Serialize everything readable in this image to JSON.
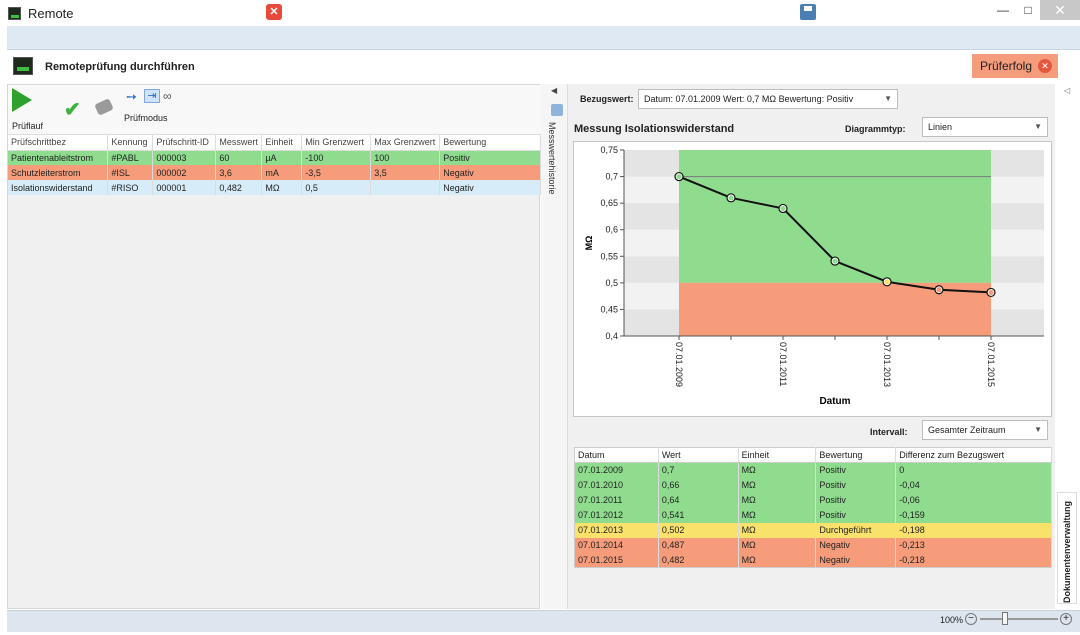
{
  "window": {
    "title": "Remote",
    "controls": {
      "minimize": "—",
      "maximize": "□",
      "close": "✕"
    }
  },
  "toolbar": {
    "cancel_icon": "cancel-icon",
    "save_icon": "save-icon"
  },
  "header": {
    "title": "Remoteprüfung durchführen",
    "result_badge": "Prüferfolg"
  },
  "ribbon": {
    "run_label": "Prüflauf",
    "mode_label": "Prüfmodus"
  },
  "steps": {
    "columns": [
      "Prüfschrittbez",
      "Kennung",
      "Prüfschritt-ID",
      "Messwert",
      "Einheit",
      "Min Grenzwert",
      "Max Grenzwert",
      "Bewertung"
    ],
    "rows": [
      {
        "status": "g",
        "cells": [
          "Patientenableitstrom",
          "#PABL",
          "000003",
          "60",
          "µA",
          "-100",
          "100",
          "Positiv"
        ]
      },
      {
        "status": "r",
        "cells": [
          "Schutzleiterstrom",
          "#ISL",
          "000002",
          "3,6",
          "mA",
          "-3,5",
          "3,5",
          "Negativ"
        ]
      },
      {
        "status": "b",
        "cells": [
          "Isolationswiderstand",
          "#RISO",
          "000001",
          "0,482",
          "MΩ",
          "0,5",
          "",
          "Negativ"
        ]
      }
    ]
  },
  "history_tab": "Messwertehistorie",
  "reference": {
    "label": "Bezugswert:",
    "value": "Datum: 07.01.2009 Wert: 0,7 MΩ Bewertung: Positiv"
  },
  "chart_panel": {
    "title": "Messung Isolationswiderstand",
    "type_label": "Diagrammtyp:",
    "type_value": "Linien",
    "interval_label": "Intervall:",
    "interval_value": "Gesamter Zeitraum"
  },
  "chart_data": {
    "type": "line",
    "x": [
      "07.01.2009",
      "07.01.2010",
      "07.01.2011",
      "07.01.2012",
      "07.01.2013",
      "07.01.2014",
      "07.01.2015"
    ],
    "x_ticks": [
      "07.01.2009",
      "07.01.2011",
      "07.01.2013",
      "07.01.2015"
    ],
    "series": [
      {
        "values": [
          0.7,
          0.66,
          0.64,
          0.541,
          0.502,
          0.487,
          0.482
        ]
      }
    ],
    "reference_value": 0.7,
    "limit_value": 0.5,
    "y_ticks": [
      "0,4",
      "0,45",
      "0,5",
      "0,55",
      "0,6",
      "0,65",
      "0,7",
      "0,75"
    ],
    "xlabel": "Datum",
    "ylabel": "MΩ",
    "ylim": [
      0.4,
      0.75
    ],
    "colors": {
      "pass": "#8fdc8f",
      "fail": "#f69c7a",
      "warn": "#f9e26b",
      "line": "#111111"
    }
  },
  "history": {
    "columns": [
      "Datum",
      "Wert",
      "Einheit",
      "Bewertung",
      "Differenz zum Bezugswert"
    ],
    "rows": [
      {
        "status": "g",
        "cells": [
          "07.01.2009",
          "0,7",
          "MΩ",
          "Positiv",
          "0"
        ]
      },
      {
        "status": "g",
        "cells": [
          "07.01.2010",
          "0,66",
          "MΩ",
          "Positiv",
          "-0,04"
        ]
      },
      {
        "status": "g",
        "cells": [
          "07.01.2011",
          "0,64",
          "MΩ",
          "Positiv",
          "-0,06"
        ]
      },
      {
        "status": "g",
        "cells": [
          "07.01.2012",
          "0,541",
          "MΩ",
          "Positiv",
          "-0,159"
        ]
      },
      {
        "status": "y",
        "cells": [
          "07.01.2013",
          "0,502",
          "MΩ",
          "Durchgeführt",
          "-0,198"
        ]
      },
      {
        "status": "r",
        "cells": [
          "07.01.2014",
          "0,487",
          "MΩ",
          "Negativ",
          "-0,213"
        ]
      },
      {
        "status": "r",
        "cells": [
          "07.01.2015",
          "0,482",
          "MΩ",
          "Negativ",
          "-0,218"
        ]
      }
    ]
  },
  "doc_tab": "Dokumentenverwaltung",
  "status": {
    "zoom": "100%",
    "zoom_minus": "−",
    "zoom_plus": "+"
  }
}
